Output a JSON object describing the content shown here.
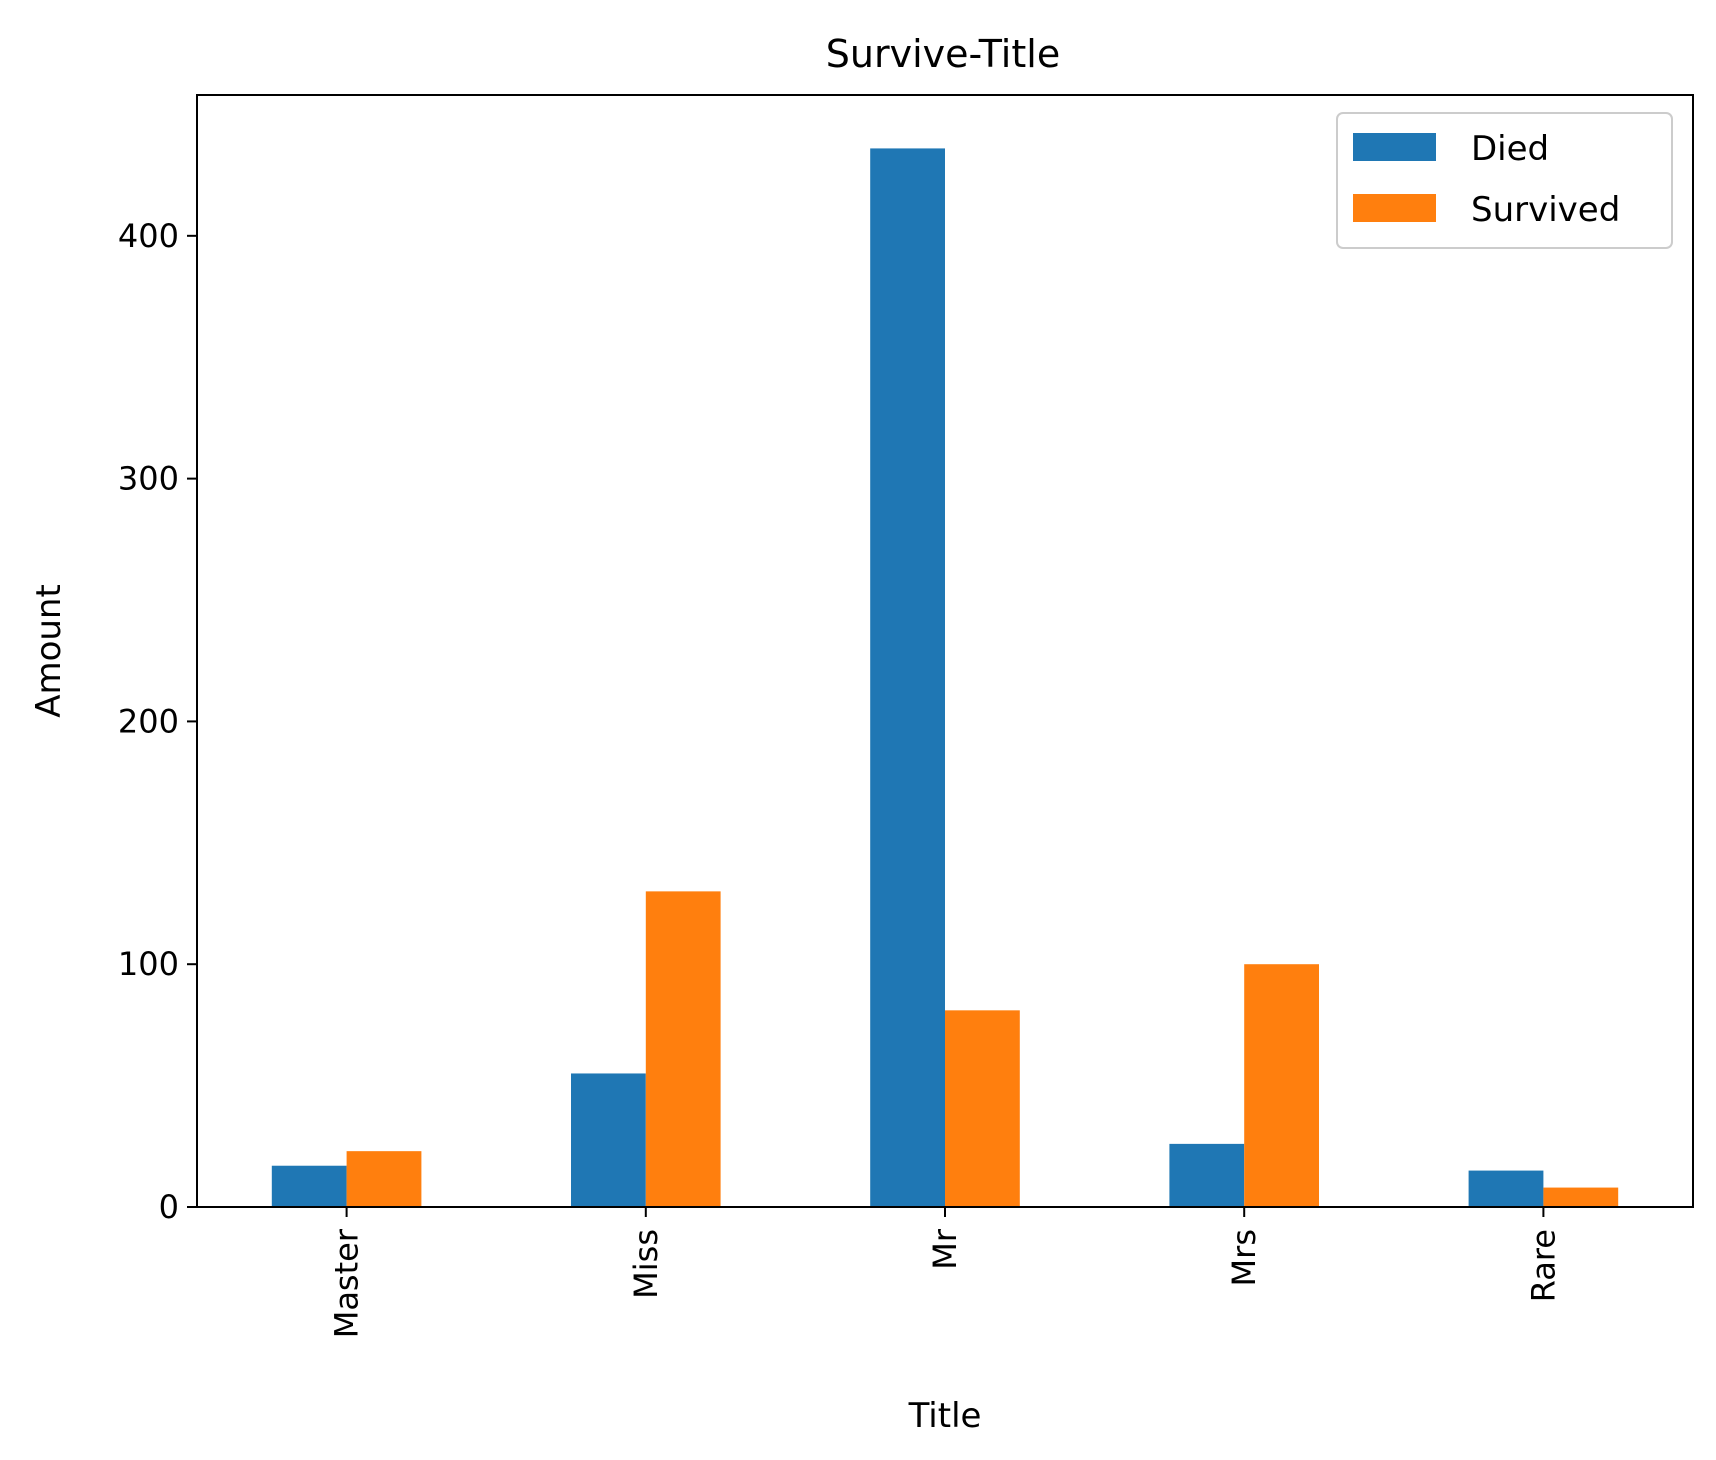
{
  "chart_data": {
    "type": "bar",
    "title": "Survive-Title",
    "xlabel": "Title",
    "ylabel": "Amount",
    "categories": [
      "Master",
      "Miss",
      "Mr",
      "Mrs",
      "Rare"
    ],
    "series": [
      {
        "name": "Died",
        "color": "#1f77b4",
        "values": [
          17,
          55,
          436,
          26,
          15
        ]
      },
      {
        "name": "Survived",
        "color": "#ff7f0e",
        "values": [
          23,
          130,
          81,
          100,
          8
        ]
      }
    ],
    "yticks": [
      0,
      100,
      200,
      300,
      400
    ],
    "ylim": [
      0,
      458
    ],
    "grid": false,
    "legend": "top-right"
  }
}
